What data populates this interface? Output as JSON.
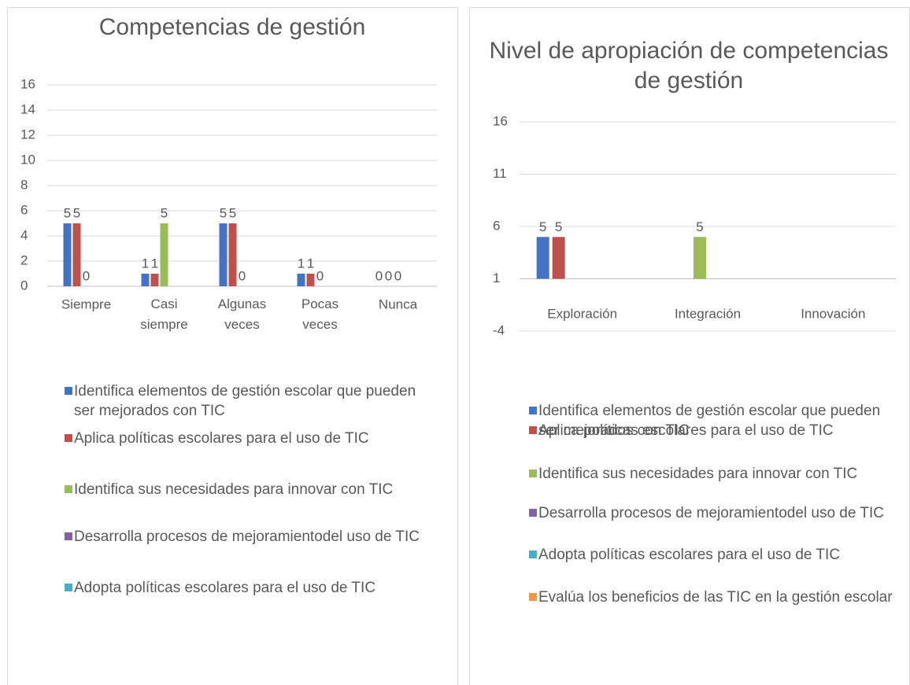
{
  "chart_data": [
    {
      "type": "bar",
      "title": "Competencias de gestión",
      "categories": [
        "Siempre",
        "Casi siempre",
        "Algunas veces",
        "Pocas veces",
        "Nunca"
      ],
      "series": [
        {
          "name": "Identifica elementos de gestión escolar que pueden ser mejorados con TIC",
          "color": "#4472c4",
          "values": [
            5,
            1,
            5,
            1,
            0
          ]
        },
        {
          "name": "Aplica políticas escolares para el uso de TIC",
          "color": "#c0504d",
          "values": [
            5,
            1,
            5,
            1,
            0
          ]
        },
        {
          "name": "Identifica sus necesidades para innovar con TIC",
          "color": "#9bbb59",
          "values": [
            0,
            5,
            0,
            0,
            0
          ]
        },
        {
          "name": "Desarrolla procesos de mejoramientodel uso de TIC",
          "color": "#8064a2",
          "values": [
            null,
            null,
            null,
            null,
            null
          ]
        },
        {
          "name": "Adopta políticas escolares para el uso de TIC",
          "color": "#4bacc6",
          "values": [
            null,
            null,
            null,
            null,
            null
          ]
        }
      ],
      "ylim": [
        0,
        16
      ],
      "yticks": [
        0,
        2,
        4,
        6,
        8,
        10,
        12,
        14,
        16
      ],
      "grid": true,
      "data_labels": true,
      "legend": "bottom"
    },
    {
      "type": "bar",
      "title": "Nivel de apropiación de competencias de gestión",
      "categories": [
        "Exploración",
        "Integración",
        "Innovación"
      ],
      "series": [
        {
          "name": "Identifica elementos de gestión escolar que pueden ser mejorados con TIC",
          "color": "#4472c4",
          "values": [
            5,
            null,
            null
          ]
        },
        {
          "name": "Aplica políticas escolares para el uso de TIC",
          "color": "#c0504d",
          "values": [
            5,
            null,
            null
          ]
        },
        {
          "name": "Identifica sus necesidades para innovar con TIC",
          "color": "#9bbb59",
          "values": [
            null,
            5,
            null
          ]
        },
        {
          "name": "Desarrolla procesos de mejoramientodel uso de TIC",
          "color": "#8064a2",
          "values": [
            null,
            null,
            null
          ]
        },
        {
          "name": "Adopta políticas escolares para el uso de TIC",
          "color": "#4bacc6",
          "values": [
            null,
            null,
            null
          ]
        },
        {
          "name": "Evalúa los beneficios de las TIC  en la gestión escolar",
          "color": "#f79646",
          "values": [
            null,
            null,
            null
          ]
        }
      ],
      "ylim": [
        -4,
        16
      ],
      "yticks": [
        -4,
        1,
        6,
        11,
        16
      ],
      "x_axis_crosses": 1,
      "grid": true,
      "data_labels": true,
      "legend": "bottom"
    }
  ]
}
